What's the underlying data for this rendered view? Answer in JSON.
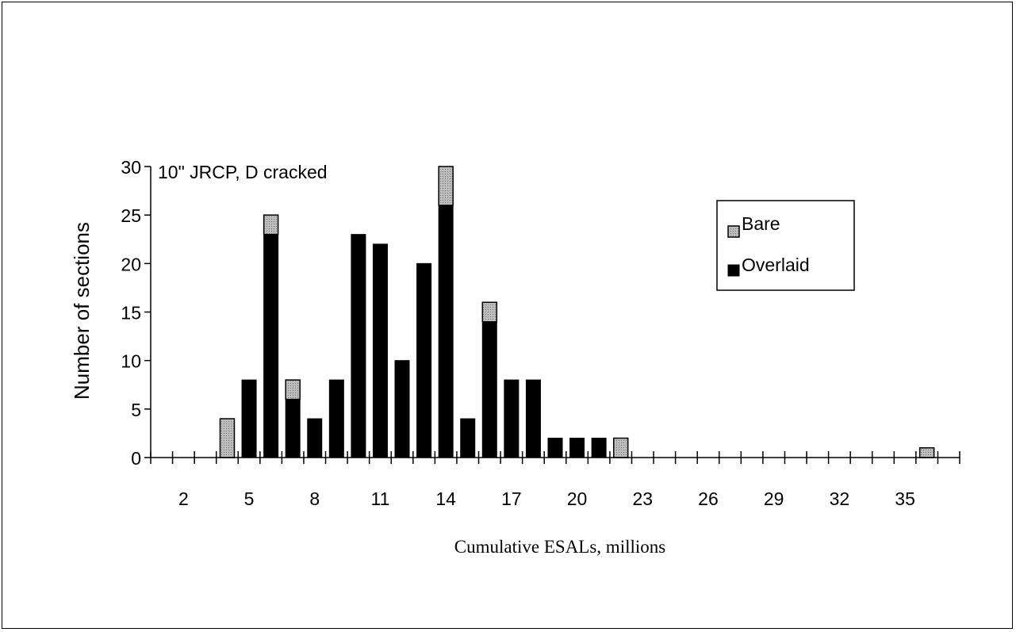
{
  "chart_data": {
    "type": "bar",
    "stacked": true,
    "title": "10\" JRCP,  D cracked",
    "xlabel": "Cumulative ESALs, millions",
    "ylabel": "Number of sections",
    "ylim": [
      0,
      30
    ],
    "yticks": [
      0,
      5,
      10,
      15,
      20,
      25,
      30
    ],
    "xlim": [
      0,
      37
    ],
    "xticklabels": [
      2,
      5,
      8,
      11,
      14,
      17,
      20,
      23,
      26,
      29,
      32,
      35
    ],
    "legend_placement": "right",
    "categories": [
      1,
      2,
      3,
      4,
      5,
      6,
      7,
      8,
      9,
      10,
      11,
      12,
      13,
      14,
      15,
      16,
      17,
      18,
      19,
      20,
      21,
      22,
      23,
      24,
      25,
      26,
      27,
      28,
      29,
      30,
      31,
      32,
      33,
      34,
      35,
      36,
      37
    ],
    "series": [
      {
        "name": "Overlaid",
        "color": "#000000",
        "values": [
          0,
          0,
          0,
          0,
          8,
          23,
          6,
          4,
          8,
          23,
          22,
          10,
          20,
          26,
          4,
          14,
          8,
          8,
          2,
          2,
          2,
          0,
          0,
          0,
          0,
          0,
          0,
          0,
          0,
          0,
          0,
          0,
          0,
          0,
          0,
          0,
          0
        ]
      },
      {
        "name": "Bare",
        "color": "#b3b3b3",
        "values": [
          0,
          0,
          0,
          4,
          0,
          2,
          2,
          0,
          0,
          0,
          0,
          0,
          0,
          4,
          0,
          2,
          0,
          0,
          0,
          0,
          0,
          2,
          0,
          0,
          0,
          0,
          0,
          0,
          0,
          0,
          0,
          0,
          0,
          0,
          0,
          1,
          0
        ]
      }
    ]
  }
}
